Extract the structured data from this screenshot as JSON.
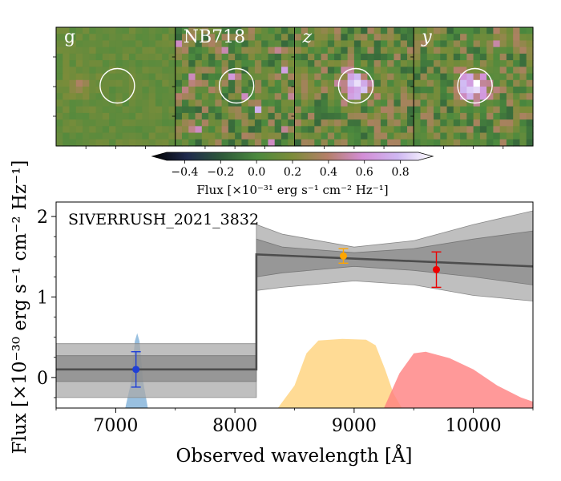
{
  "colorbar": {
    "label": "Flux [×10⁻³¹ erg s⁻¹ cm⁻² Hz⁻¹]",
    "ticks": [
      "−0.4",
      "−0.2",
      "0.0",
      "0.2",
      "0.4",
      "0.6",
      "0.8"
    ],
    "tick_values": [
      -0.4,
      -0.2,
      0.0,
      0.2,
      0.4,
      0.6,
      0.8
    ],
    "range": [
      -0.5,
      0.9
    ],
    "colors": [
      "#000000",
      "#1f2a4d",
      "#2e5a3a",
      "#4c8a3e",
      "#7d8c3a",
      "#b57f6a",
      "#d38ed6",
      "#cfb8f2",
      "#ffffff"
    ]
  },
  "stamps": [
    {
      "label": "g",
      "italic": false,
      "blob": 0.15,
      "center": 0.0
    },
    {
      "label": "NB718",
      "italic": false,
      "blob": 0.1,
      "center": 0.0
    },
    {
      "label": "z",
      "italic": true,
      "blob": 0.4,
      "center": 0.75
    },
    {
      "label": "y",
      "italic": true,
      "blob": 0.35,
      "center": 0.7
    }
  ],
  "chart_data": {
    "type": "line",
    "title": "SIVERRUSH_2021_3832",
    "xlabel": "Observed wavelength [Å]",
    "ylabel": "Flux [×10⁻³⁰ erg s⁻¹ cm⁻² Hz⁻¹]",
    "xlim": [
      6500,
      10500
    ],
    "ylim": [
      -0.38,
      2.18
    ],
    "xticks": [
      7000,
      8000,
      9000,
      10000
    ],
    "yticks": [
      0,
      1,
      2
    ],
    "model": {
      "break_x": 8180,
      "x": [
        6500,
        8180,
        8180,
        10500
      ],
      "y": [
        0.1,
        0.1,
        1.53,
        1.38
      ],
      "inner_band": {
        "x": [
          6500,
          8180,
          8180,
          8400,
          9000,
          9500,
          10000,
          10500
        ],
        "lower": [
          -0.05,
          -0.05,
          1.25,
          1.3,
          1.38,
          1.33,
          1.25,
          1.15
        ],
        "upper": [
          0.27,
          0.27,
          1.72,
          1.62,
          1.55,
          1.6,
          1.72,
          1.82
        ]
      },
      "outer_band": {
        "x": [
          6500,
          8180,
          8180,
          8400,
          9000,
          9500,
          10000,
          10500
        ],
        "lower": [
          -0.25,
          -0.25,
          1.08,
          1.12,
          1.2,
          1.15,
          1.02,
          0.95
        ],
        "upper": [
          0.42,
          0.42,
          1.9,
          1.78,
          1.62,
          1.7,
          1.9,
          2.07
        ]
      }
    },
    "points": [
      {
        "band": "NB718",
        "x": 7170,
        "y": 0.1,
        "yerr": 0.22,
        "color": "#1f3fd6"
      },
      {
        "band": "z",
        "x": 8910,
        "y": 1.51,
        "yerr": 0.09,
        "color": "#ffa500"
      },
      {
        "band": "y",
        "x": 9690,
        "y": 1.34,
        "yerr": 0.22,
        "color": "#ee0000"
      }
    ],
    "filters": [
      {
        "band": "NB718",
        "color": "#7fb0d8",
        "x": [
          7080,
          7130,
          7160,
          7180,
          7200,
          7230,
          7270
        ],
        "y": [
          -0.38,
          -0.05,
          0.45,
          0.55,
          0.45,
          -0.05,
          -0.38
        ]
      },
      {
        "band": "z",
        "color": "#ffd27a",
        "x": [
          8360,
          8500,
          8600,
          8700,
          8900,
          9100,
          9180,
          9260,
          9330,
          9400
        ],
        "y": [
          -0.38,
          -0.1,
          0.3,
          0.46,
          0.48,
          0.47,
          0.4,
          0.1,
          -0.2,
          -0.38
        ]
      },
      {
        "band": "y",
        "color": "#ff7f7f",
        "x": [
          9250,
          9380,
          9500,
          9600,
          9800,
          10000,
          10200,
          10400,
          10500
        ],
        "y": [
          -0.38,
          0.05,
          0.3,
          0.32,
          0.24,
          0.1,
          -0.1,
          -0.25,
          -0.3
        ]
      }
    ]
  }
}
